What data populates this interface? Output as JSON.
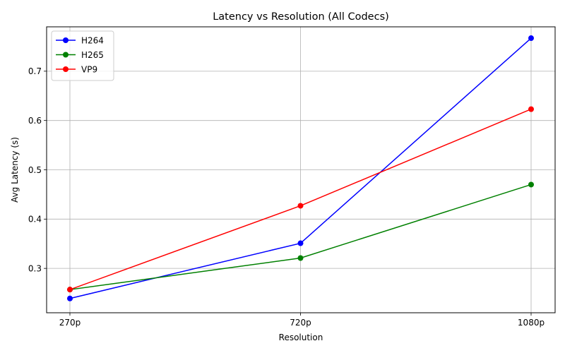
{
  "chart_data": {
    "type": "line",
    "title": "Latency vs Resolution (All Codecs)",
    "xlabel": "Resolution",
    "ylabel": "Avg Latency (s)",
    "categories": [
      "270p",
      "720p",
      "1080p"
    ],
    "ylim": [
      0.21,
      0.79
    ],
    "yticks": [
      0.3,
      0.4,
      0.5,
      0.6,
      0.7
    ],
    "grid": true,
    "legend_position": "top-left",
    "series": [
      {
        "name": "H264",
        "color": "#0000ff",
        "values": [
          0.239,
          0.351,
          0.767
        ]
      },
      {
        "name": "H265",
        "color": "#008000",
        "values": [
          0.257,
          0.321,
          0.47
        ]
      },
      {
        "name": "VP9",
        "color": "#ff0000",
        "values": [
          0.257,
          0.427,
          0.623
        ]
      }
    ]
  }
}
